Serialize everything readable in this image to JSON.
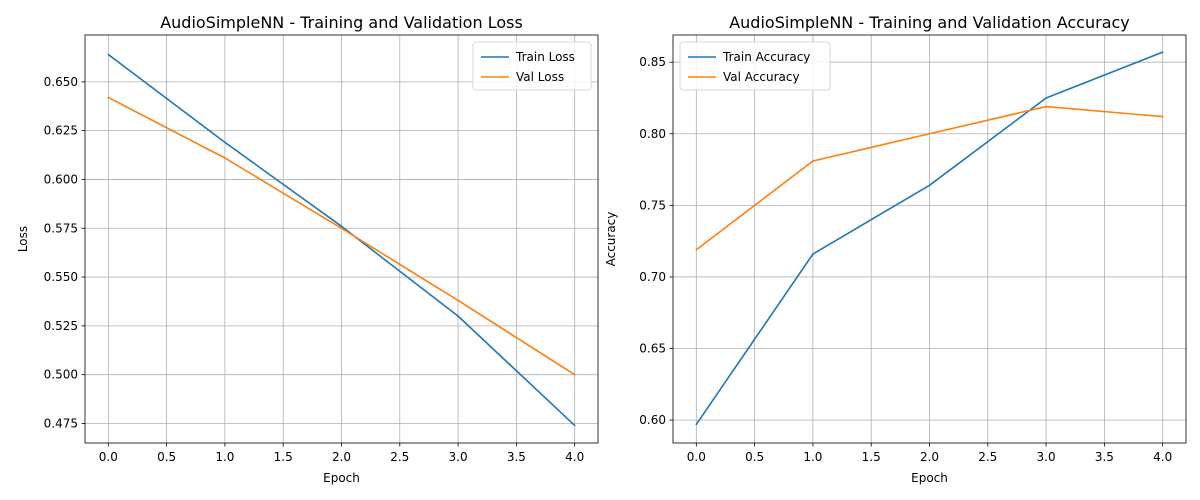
{
  "chart_data": [
    {
      "type": "line",
      "title": "AudioSimpleNN - Training and Validation Loss",
      "xlabel": "Epoch",
      "ylabel": "Loss",
      "x": [
        0,
        1,
        2,
        3,
        4
      ],
      "xlim": [
        -0.2,
        4.2
      ],
      "ylim": [
        0.465,
        0.674
      ],
      "xticks": [
        "0.0",
        "0.5",
        "1.0",
        "1.5",
        "2.0",
        "2.5",
        "3.0",
        "3.5",
        "4.0"
      ],
      "yticks": [
        "0.475",
        "0.500",
        "0.525",
        "0.550",
        "0.575",
        "0.600",
        "0.625",
        "0.650"
      ],
      "grid": true,
      "legend_position": "top-right",
      "series": [
        {
          "name": "Train Loss",
          "color": "#1f77b4",
          "values": [
            0.664,
            0.619,
            0.576,
            0.53,
            0.474
          ]
        },
        {
          "name": "Val Loss",
          "color": "#ff7f0e",
          "values": [
            0.642,
            0.611,
            0.575,
            0.538,
            0.5
          ]
        }
      ]
    },
    {
      "type": "line",
      "title": "AudioSimpleNN - Training and Validation Accuracy",
      "xlabel": "Epoch",
      "ylabel": "Accuracy",
      "x": [
        0,
        1,
        2,
        3,
        4
      ],
      "xlim": [
        -0.2,
        4.2
      ],
      "ylim": [
        0.584,
        0.869
      ],
      "xticks": [
        "0.0",
        "0.5",
        "1.0",
        "1.5",
        "2.0",
        "2.5",
        "3.0",
        "3.5",
        "4.0"
      ],
      "yticks": [
        "0.60",
        "0.65",
        "0.70",
        "0.75",
        "0.80",
        "0.85"
      ],
      "grid": true,
      "legend_position": "top-left",
      "series": [
        {
          "name": "Train Accuracy",
          "color": "#1f77b4",
          "values": [
            0.597,
            0.716,
            0.764,
            0.825,
            0.857
          ]
        },
        {
          "name": "Val Accuracy",
          "color": "#ff7f0e",
          "values": [
            0.719,
            0.781,
            0.8,
            0.819,
            0.812
          ]
        }
      ]
    }
  ]
}
